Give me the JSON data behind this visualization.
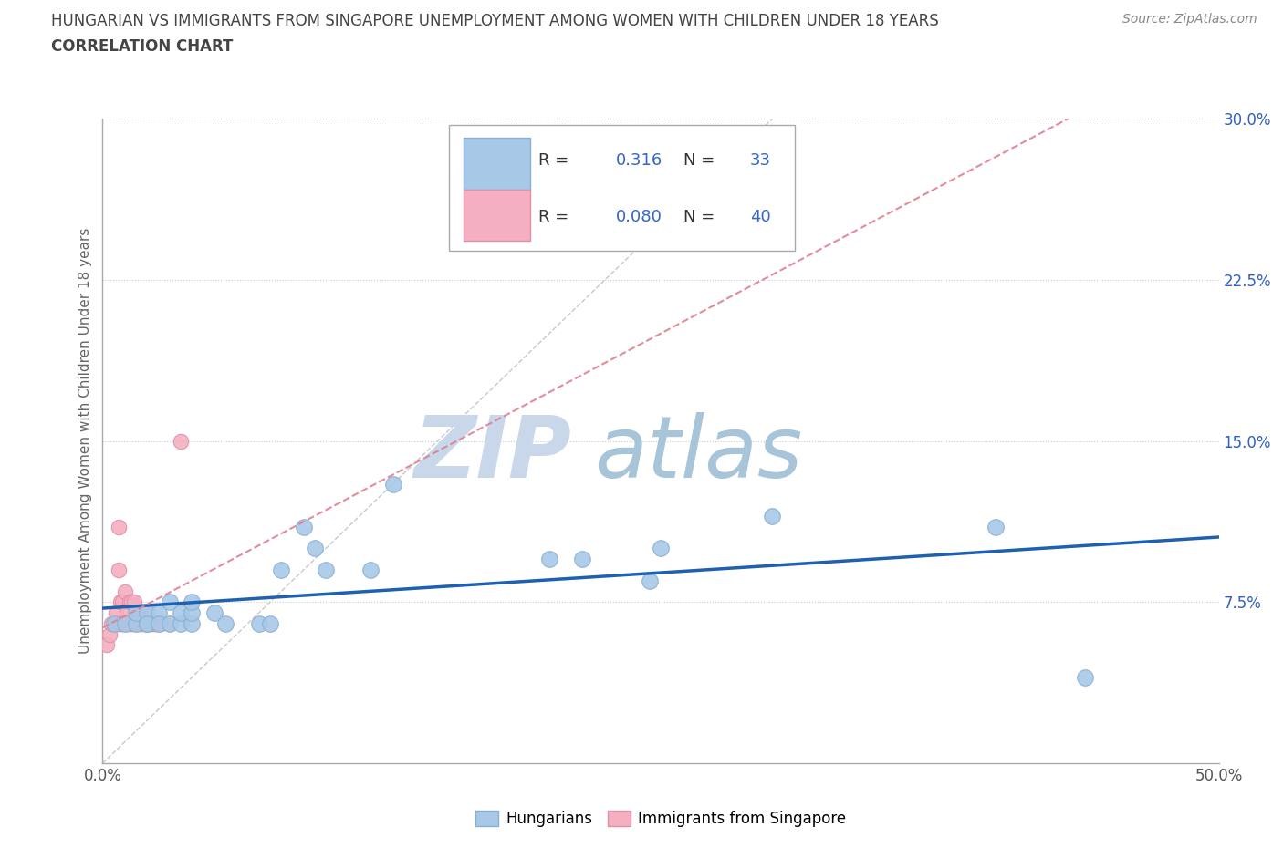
{
  "title_line1": "HUNGARIAN VS IMMIGRANTS FROM SINGAPORE UNEMPLOYMENT AMONG WOMEN WITH CHILDREN UNDER 18 YEARS",
  "title_line2": "CORRELATION CHART",
  "source": "Source: ZipAtlas.com",
  "ylabel": "Unemployment Among Women with Children Under 18 years",
  "xlim": [
    0,
    0.5
  ],
  "ylim": [
    0,
    0.3
  ],
  "r_hungarian": 0.316,
  "n_hungarian": 33,
  "r_singapore": 0.08,
  "n_singapore": 40,
  "blue_color": "#a8c8e8",
  "pink_color": "#f4afc0",
  "regression_blue_color": "#2060b0",
  "regression_pink_color": "#e08090",
  "grid_color": "#cccccc",
  "watermark_color_zip": "#c0d0e8",
  "watermark_color_atlas": "#a0c0d8",
  "legend_label_hungarian": "Hungarians",
  "legend_label_singapore": "Immigrants from Singapore",
  "hungarian_x": [
    0.005,
    0.01,
    0.015,
    0.015,
    0.02,
    0.02,
    0.02,
    0.025,
    0.025,
    0.03,
    0.03,
    0.035,
    0.035,
    0.04,
    0.04,
    0.04,
    0.05,
    0.055,
    0.07,
    0.075,
    0.08,
    0.09,
    0.095,
    0.1,
    0.12,
    0.13,
    0.2,
    0.215,
    0.245,
    0.25,
    0.3,
    0.4,
    0.44
  ],
  "hungarian_y": [
    0.065,
    0.065,
    0.065,
    0.07,
    0.065,
    0.07,
    0.065,
    0.07,
    0.065,
    0.065,
    0.075,
    0.065,
    0.07,
    0.065,
    0.07,
    0.075,
    0.07,
    0.065,
    0.065,
    0.065,
    0.09,
    0.11,
    0.1,
    0.09,
    0.09,
    0.13,
    0.095,
    0.095,
    0.085,
    0.1,
    0.115,
    0.11,
    0.04
  ],
  "singapore_x": [
    0.002,
    0.003,
    0.004,
    0.005,
    0.006,
    0.006,
    0.007,
    0.007,
    0.007,
    0.008,
    0.008,
    0.009,
    0.009,
    0.01,
    0.01,
    0.011,
    0.011,
    0.012,
    0.012,
    0.013,
    0.013,
    0.014,
    0.014,
    0.015,
    0.015,
    0.016,
    0.016,
    0.017,
    0.018,
    0.018,
    0.019,
    0.02,
    0.021,
    0.022,
    0.023,
    0.024,
    0.025,
    0.026,
    0.03,
    0.035
  ],
  "singapore_y": [
    0.055,
    0.06,
    0.065,
    0.065,
    0.065,
    0.07,
    0.065,
    0.09,
    0.11,
    0.065,
    0.075,
    0.065,
    0.075,
    0.065,
    0.08,
    0.065,
    0.07,
    0.065,
    0.075,
    0.065,
    0.075,
    0.065,
    0.075,
    0.065,
    0.07,
    0.065,
    0.07,
    0.065,
    0.065,
    0.07,
    0.065,
    0.065,
    0.065,
    0.065,
    0.065,
    0.065,
    0.065,
    0.065,
    0.065,
    0.15
  ]
}
